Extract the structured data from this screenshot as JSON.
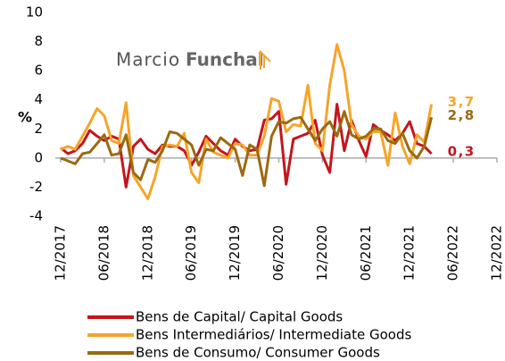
{
  "chart_data": {
    "type": "line",
    "ylabel": "%",
    "annotations": [
      "Marcio",
      "Funchal"
    ],
    "x": [
      "12/2017",
      "01/2018",
      "02/2018",
      "03/2018",
      "04/2018",
      "05/2018",
      "06/2018",
      "07/2018",
      "08/2018",
      "09/2018",
      "10/2018",
      "11/2018",
      "12/2018",
      "01/2019",
      "02/2019",
      "03/2019",
      "04/2019",
      "05/2019",
      "06/2019",
      "07/2019",
      "08/2019",
      "09/2019",
      "10/2019",
      "11/2019",
      "12/2019",
      "01/2020",
      "02/2020",
      "03/2020",
      "04/2020",
      "05/2020",
      "06/2020",
      "07/2020",
      "08/2020",
      "09/2020",
      "10/2020",
      "11/2020",
      "12/2020",
      "01/2021",
      "02/2021",
      "03/2021",
      "04/2021",
      "05/2021",
      "06/2021",
      "07/2021",
      "08/2021",
      "09/2021",
      "10/2021",
      "11/2021",
      "12/2021",
      "01/2022",
      "02/2022",
      "03/2022"
    ],
    "xlim": [
      "12/2017",
      "12/2022"
    ],
    "xticks": [
      "12/2017",
      "06/2018",
      "12/2018",
      "06/2019",
      "12/2019",
      "06/2020",
      "12/2020",
      "06/2021",
      "12/2021",
      "06/2022",
      "12/2022"
    ],
    "ylim": [
      -4,
      10
    ],
    "yticks": [
      -4,
      -2,
      0,
      2,
      4,
      6,
      8,
      10
    ],
    "series": [
      {
        "name": "Bens de Capital/ Capital Goods",
        "color": "#c4161c",
        "values": [
          0.7,
          0.3,
          0.5,
          1.0,
          1.9,
          1.5,
          1.2,
          1.5,
          1.3,
          -2.0,
          0.8,
          1.3,
          0.6,
          0.3,
          0.9,
          0.8,
          0.8,
          0.5,
          -0.5,
          0.4,
          1.5,
          1.0,
          0.5,
          0.2,
          1.3,
          0.8,
          0.5,
          0.6,
          2.6,
          2.7,
          3.2,
          -1.8,
          1.3,
          1.5,
          1.7,
          2.6,
          0.2,
          -1.0,
          3.7,
          0.5,
          2.6,
          1.2,
          0.1,
          2.3,
          1.9,
          1.6,
          1.2,
          1.7,
          2.5,
          1.0,
          0.8,
          0.3
        ],
        "value_labels": [
          null,
          null,
          null,
          null,
          null,
          null,
          null,
          null,
          null,
          null,
          null,
          null,
          null,
          null,
          null,
          null,
          null,
          null,
          null,
          null,
          null,
          null,
          null,
          null,
          null,
          null,
          null,
          null,
          null,
          null,
          null,
          null,
          null,
          null,
          null,
          null,
          null,
          null,
          null,
          null,
          null,
          null,
          null,
          null,
          null,
          null,
          null,
          null,
          null,
          null,
          null,
          "0,3"
        ]
      },
      {
        "name": "Bens Intermediários/ Intermediate Goods",
        "color": "#f5a52a",
        "values": [
          0.6,
          0.8,
          0.6,
          1.5,
          2.4,
          3.4,
          2.9,
          1.2,
          1.0,
          3.8,
          -1.2,
          -2.0,
          -2.8,
          -1.3,
          0.8,
          0.9,
          0.8,
          1.7,
          -1.0,
          -1.7,
          1.3,
          0.4,
          0.2,
          0.0,
          1.0,
          0.9,
          0.2,
          0.2,
          1.5,
          4.1,
          3.9,
          1.8,
          2.3,
          2.2,
          5.0,
          1.0,
          0.5,
          5.0,
          7.8,
          6.0,
          2.3,
          1.5,
          1.3,
          1.8,
          1.8,
          -0.5,
          3.1,
          0.8,
          -0.4,
          1.6,
          1.1,
          3.7
        ],
        "value_labels": [
          null,
          null,
          null,
          null,
          null,
          null,
          null,
          null,
          null,
          null,
          null,
          null,
          null,
          null,
          null,
          null,
          null,
          null,
          null,
          null,
          null,
          null,
          null,
          null,
          null,
          null,
          null,
          null,
          null,
          null,
          null,
          null,
          null,
          null,
          null,
          null,
          null,
          null,
          null,
          null,
          null,
          null,
          null,
          null,
          null,
          null,
          null,
          null,
          null,
          null,
          null,
          "3,7"
        ]
      },
      {
        "name": "Bens de Consumo/ Consumer Goods",
        "color": "#9b6a10",
        "values": [
          0.0,
          -0.2,
          -0.4,
          0.3,
          0.4,
          1.0,
          1.6,
          0.2,
          0.3,
          1.6,
          -1.0,
          -1.5,
          -0.1,
          -0.3,
          0.5,
          1.8,
          1.7,
          1.3,
          0.9,
          -0.5,
          0.6,
          0.5,
          1.4,
          1.0,
          0.6,
          -1.2,
          0.9,
          0.6,
          -1.9,
          1.5,
          2.5,
          2.4,
          2.7,
          2.8,
          2.0,
          1.2,
          2.0,
          2.5,
          1.5,
          3.2,
          1.6,
          1.3,
          1.5,
          2.0,
          2.0,
          1.2,
          1.0,
          1.7,
          0.5,
          0.0,
          0.8,
          2.8
        ],
        "value_labels": [
          null,
          null,
          null,
          null,
          null,
          null,
          null,
          null,
          null,
          null,
          null,
          null,
          null,
          null,
          null,
          null,
          null,
          null,
          null,
          null,
          null,
          null,
          null,
          null,
          null,
          null,
          null,
          null,
          null,
          null,
          null,
          null,
          null,
          null,
          null,
          null,
          null,
          null,
          null,
          null,
          null,
          null,
          null,
          null,
          null,
          null,
          null,
          null,
          null,
          null,
          null,
          "2,8"
        ]
      }
    ]
  }
}
